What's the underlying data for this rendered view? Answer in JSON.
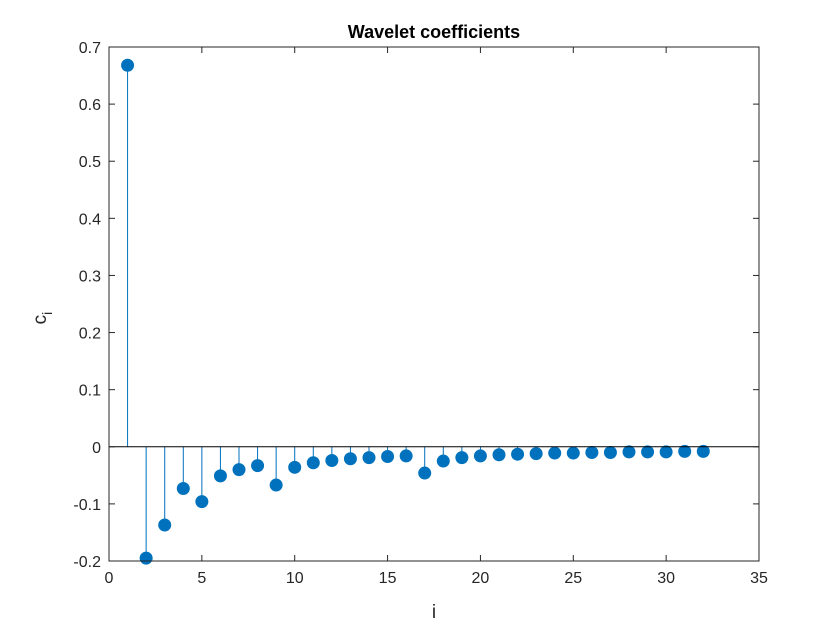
{
  "colors": {
    "series": "#0072BD",
    "axis": "#262626",
    "background": "#ffffff"
  },
  "chart_data": {
    "type": "stem",
    "title": "Wavelet coefficients",
    "xlabel": "i",
    "ylabel_main": "c",
    "ylabel_sub": "i",
    "xlim": [
      0,
      35
    ],
    "ylim": [
      -0.2,
      0.7
    ],
    "xticks": [
      0,
      5,
      10,
      15,
      20,
      25,
      30,
      35
    ],
    "xtick_labels": [
      "0",
      "5",
      "10",
      "15",
      "20",
      "25",
      "30",
      "35"
    ],
    "yticks": [
      -0.2,
      -0.1,
      0,
      0.1,
      0.2,
      0.3,
      0.4,
      0.5,
      0.6,
      0.7
    ],
    "ytick_labels": [
      "-0.2",
      "-0.1",
      "0",
      "0.1",
      "0.2",
      "0.3",
      "0.4",
      "0.5",
      "0.6",
      "0.7"
    ],
    "grid": false,
    "baseline": 0,
    "x": [
      1,
      2,
      3,
      4,
      5,
      6,
      7,
      8,
      9,
      10,
      11,
      12,
      13,
      14,
      15,
      16,
      17,
      18,
      19,
      20,
      21,
      22,
      23,
      24,
      25,
      26,
      27,
      28,
      29,
      30,
      31,
      32
    ],
    "values": [
      0.668,
      -0.195,
      -0.137,
      -0.073,
      -0.096,
      -0.051,
      -0.04,
      -0.033,
      -0.067,
      -0.036,
      -0.028,
      -0.024,
      -0.021,
      -0.019,
      -0.017,
      -0.016,
      -0.046,
      -0.025,
      -0.019,
      -0.016,
      -0.014,
      -0.013,
      -0.012,
      -0.011,
      -0.011,
      -0.01,
      -0.01,
      -0.009,
      -0.009,
      -0.009,
      -0.008,
      -0.008
    ]
  }
}
